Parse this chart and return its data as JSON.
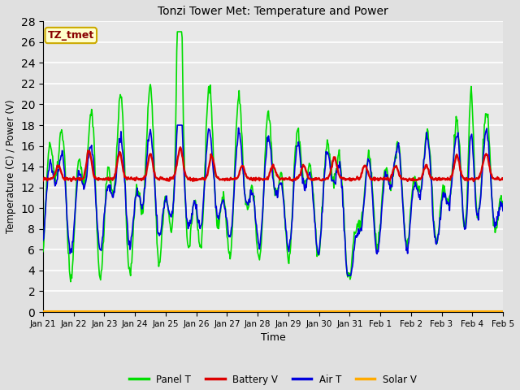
{
  "title": "Tonzi Tower Met: Temperature and Power",
  "xlabel": "Time",
  "ylabel": "Temperature (C) / Power (V)",
  "ylim": [
    0,
    28
  ],
  "yticks": [
    0,
    2,
    4,
    6,
    8,
    10,
    12,
    14,
    16,
    18,
    20,
    22,
    24,
    26,
    28
  ],
  "xtick_labels": [
    "Jan 21",
    "Jan 22",
    "Jan 23",
    "Jan 24",
    "Jan 25",
    "Jan 26",
    "Jan 27",
    "Jan 28",
    "Jan 29",
    "Jan 30",
    "Jan 31",
    "Feb 1",
    "Feb 2",
    "Feb 3",
    "Feb 4",
    "Feb 5"
  ],
  "bg_color": "#e0e0e0",
  "plot_bg_color": "#e8e8e8",
  "grid_color": "#ffffff",
  "annotation_text": "TZ_tmet",
  "annotation_bg": "#ffffcc",
  "annotation_border": "#ccaa00",
  "annotation_text_color": "#880000",
  "legend_entries": [
    "Panel T",
    "Battery V",
    "Air T",
    "Solar V"
  ],
  "legend_colors": [
    "#00dd00",
    "#dd0000",
    "#0000dd",
    "#ffaa00"
  ],
  "line_width": 1.2,
  "figsize": [
    6.4,
    4.8
  ],
  "dpi": 100
}
